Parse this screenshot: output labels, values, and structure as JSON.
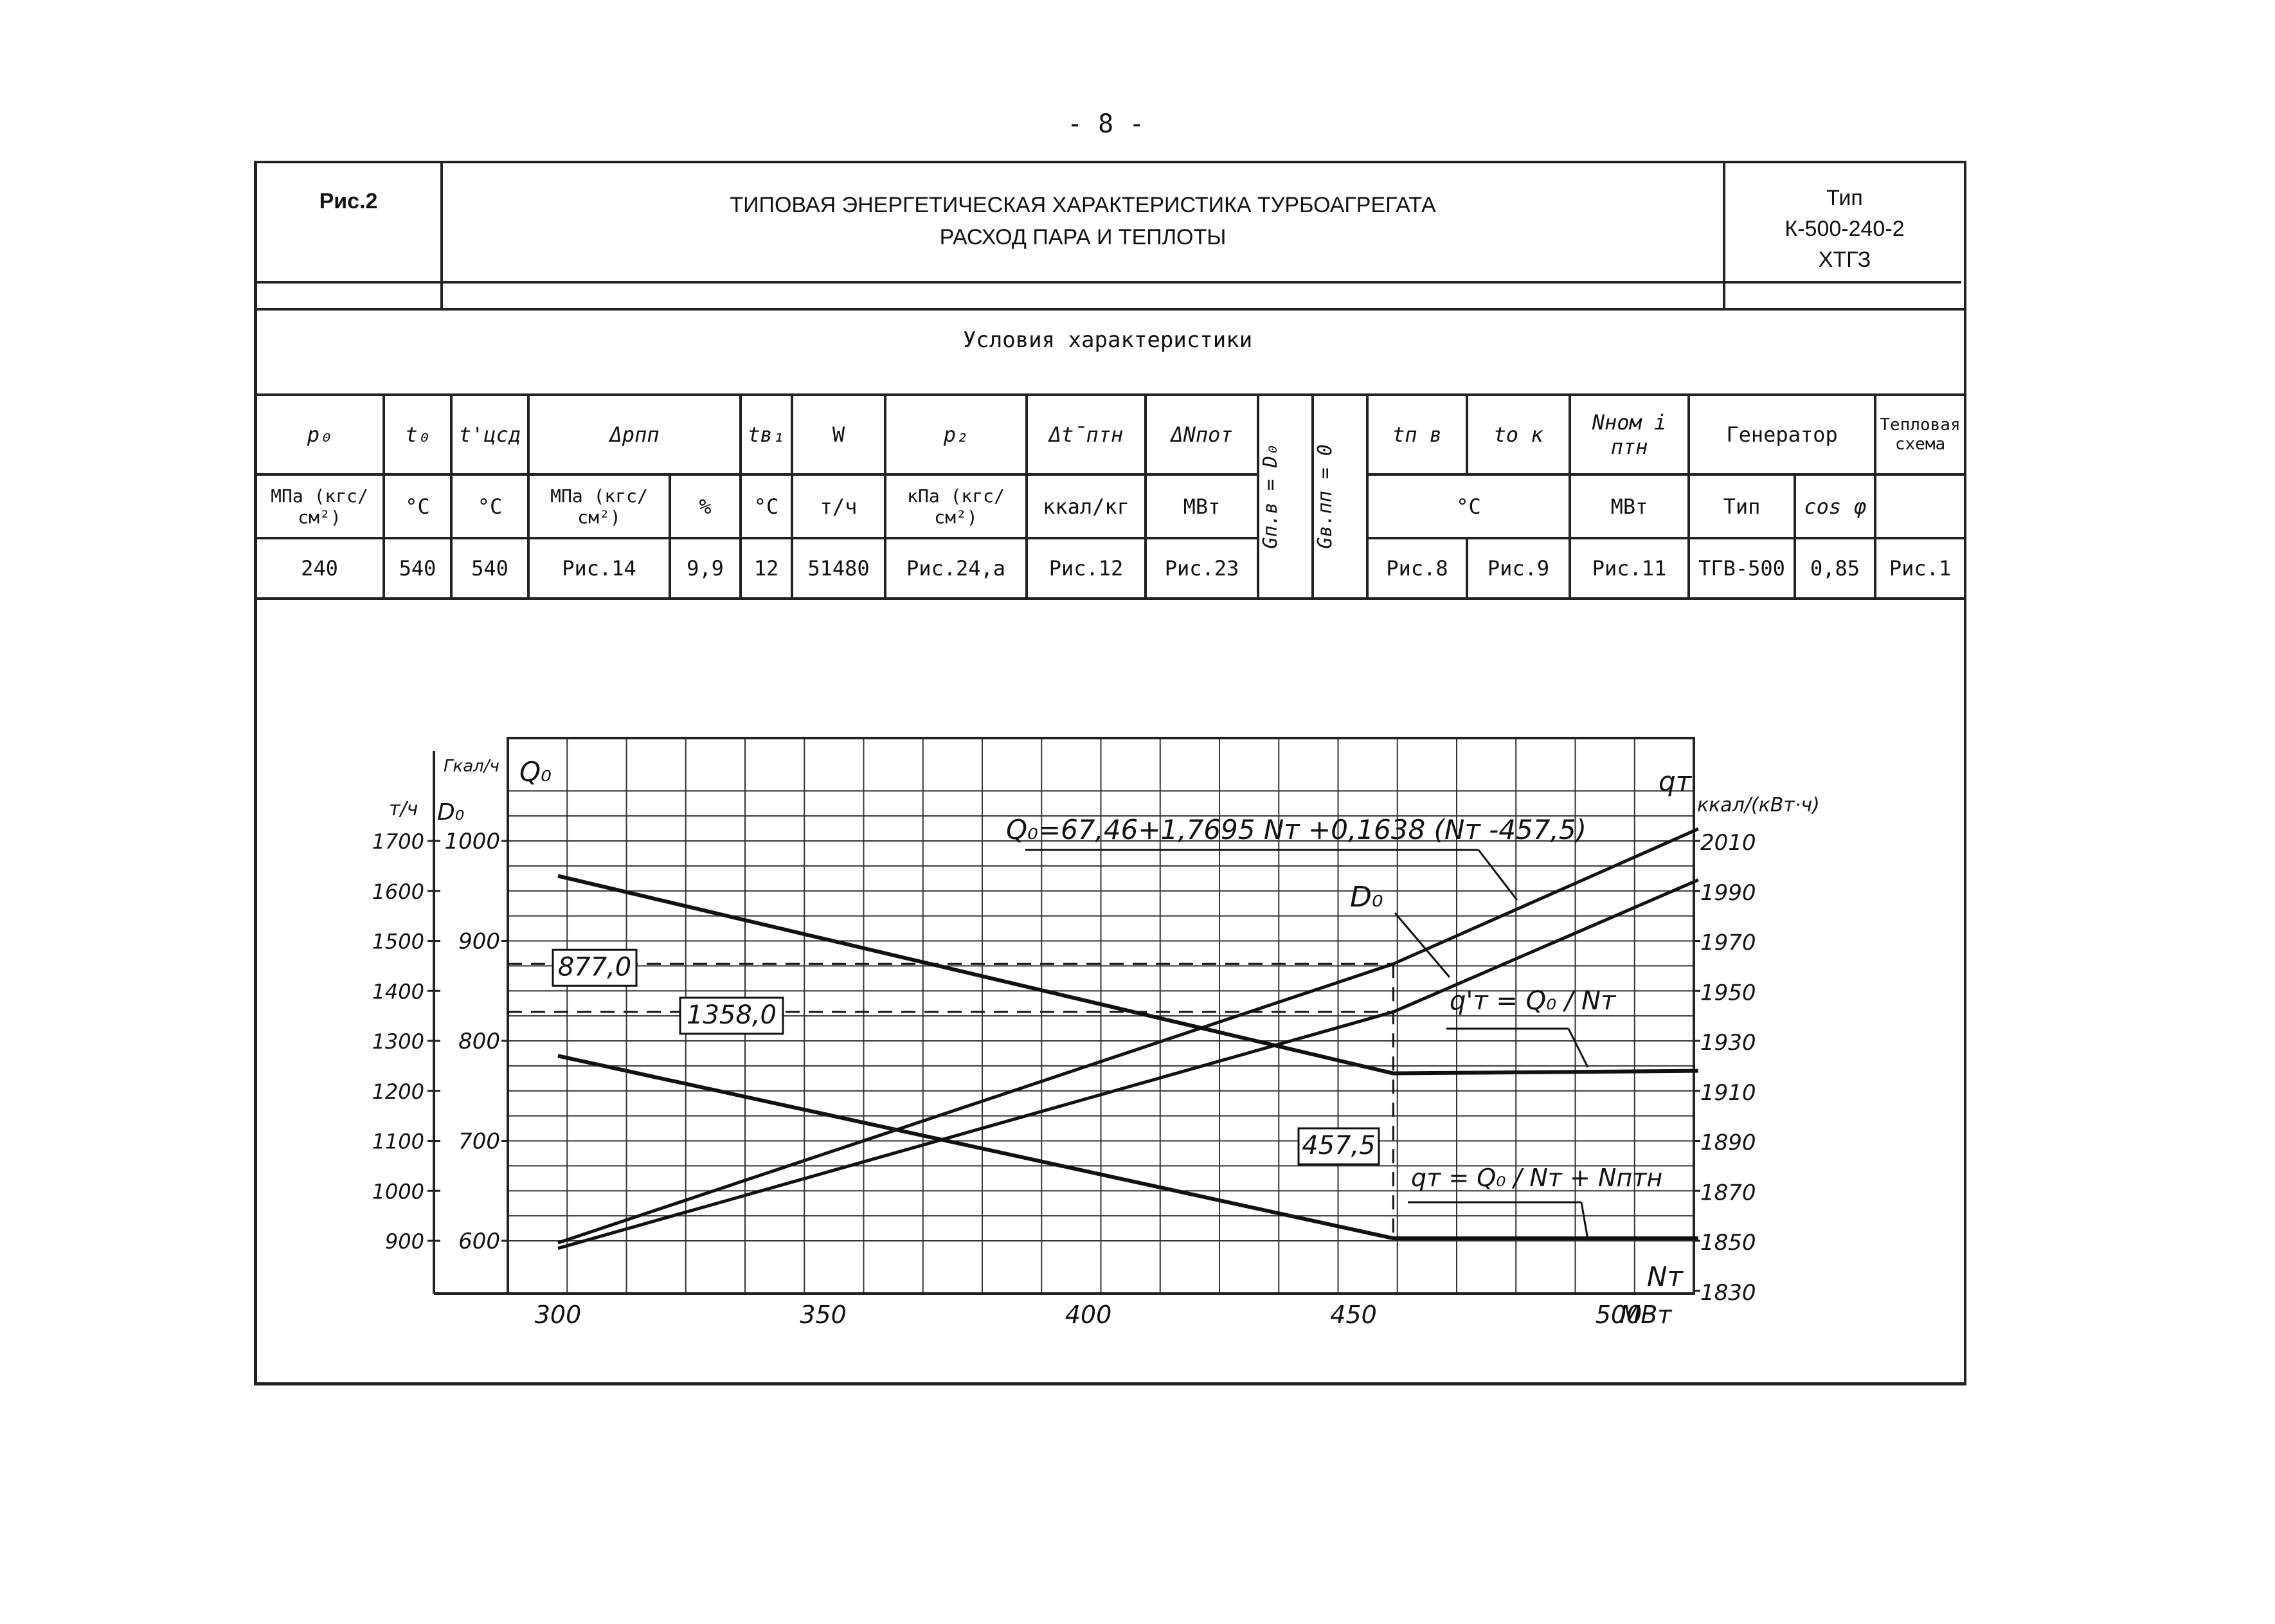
{
  "page_number": "- 8 -",
  "header": {
    "fig_label": "Рис.2",
    "title_line1": "ТИПОВАЯ ЭНЕРГЕТИЧЕСКАЯ ХАРАКТЕРИСТИКА ТУРБОАГРЕГАТА",
    "title_line2": "РАСХОД ПАРА И ТЕПЛОТЫ",
    "type_label": "Тип",
    "type_model": "К-500-240-2",
    "type_maker": "ХТГЗ"
  },
  "conditions_title": "Условия характеристики",
  "params": {
    "p0": {
      "symbol": "p₀",
      "unit": "МПа (кгс/см²)",
      "value": "240"
    },
    "t0": {
      "symbol": "t₀",
      "unit": "°C",
      "value": "540"
    },
    "tcsd": {
      "symbol": "t'цсд",
      "unit": "°C",
      "value": "540"
    },
    "dp_pp": {
      "symbol": "Δpпп",
      "unit1": "МПа (кгс/см²)",
      "unit2": "%",
      "value1": "Рис.14",
      "value2": "9,9"
    },
    "t1": {
      "symbol": "tв₁",
      "unit": "°C",
      "value": "12"
    },
    "w": {
      "symbol": "W",
      "unit": "т/ч",
      "value": "51480"
    },
    "p2": {
      "symbol": "p₂",
      "unit": "кПа (кгс/см²)",
      "value": "Рис.24,а"
    },
    "dt_ptn": {
      "symbol": "Δt̄птн",
      "unit": "ккал/кг",
      "value": "Рис.12"
    },
    "dn_pot": {
      "symbol": "ΔNпот",
      "unit": "МВт",
      "value": "Рис.23"
    },
    "gpv": {
      "symbol": "Gп.в = D₀"
    },
    "gvpp": {
      "symbol": "Gв.пп = 0"
    },
    "tpv": {
      "symbol": "tп в",
      "value": "Рис.8"
    },
    "tok": {
      "symbol": "tо к",
      "value": "Рис.9"
    },
    "t_unit": "°C",
    "ni_ptn": {
      "symbol": "Nном i птн",
      "unit": "МВт",
      "value": "Рис.11"
    },
    "generator": {
      "title": "Генератор",
      "type_label": "Тип",
      "type_value": "ТГВ-500",
      "cos_label": "cos φ",
      "cos_value": "0,85"
    },
    "scheme": {
      "title": "Тепловая схема",
      "value": "Рис.1"
    }
  },
  "chart_data": {
    "type": "line",
    "xlabel": "Nт",
    "x_unit": "МВт",
    "xlim": [
      300,
      515
    ],
    "x_ticks": [
      300,
      350,
      400,
      450,
      500
    ],
    "left_axis_D": {
      "unit": "т/ч",
      "label": "D₀",
      "ticks": [
        900,
        1000,
        1100,
        1200,
        1300,
        1400,
        1500,
        1600,
        1700
      ]
    },
    "left_axis_Q": {
      "unit": "Гкал/ч",
      "label": "Q₀",
      "ticks": [
        600,
        700,
        800,
        900,
        1000
      ]
    },
    "right_axis_q": {
      "unit": "ккал/(кВт·ч)",
      "label": "qт",
      "ticks": [
        1830,
        1850,
        1870,
        1890,
        1910,
        1930,
        1950,
        1970,
        1990,
        2010
      ]
    },
    "ylim_Q": [
      550,
      1050
    ],
    "annotations": {
      "formula": "Q₀=67,46+1,7695 Nт +0,1638 (Nт -457,5)",
      "do_label": "D₀",
      "qt_prime": "q'т = Q₀ / Nт",
      "qt": "qт = Q₀ / Nт + Nптн",
      "mark_q": "877,0",
      "mark_d": "1358,0",
      "mark_n": "457,5"
    },
    "series": [
      {
        "name": "Q₀",
        "axis": "Q",
        "x": [
          300,
          457.5,
          515
        ],
        "y": [
          598,
          877,
          1012
        ]
      },
      {
        "name": "D₀",
        "axis": "D",
        "x": [
          300,
          457.5,
          515
        ],
        "y": [
          885,
          1358,
          1622
        ]
      },
      {
        "name": "q'т",
        "axis": "q",
        "x": [
          300,
          457.5,
          515
        ],
        "y": [
          1996,
          1917,
          1918
        ]
      },
      {
        "name": "qт",
        "axis": "q",
        "x": [
          300,
          457.5,
          515
        ],
        "y": [
          1924,
          1851,
          1851
        ]
      }
    ]
  }
}
